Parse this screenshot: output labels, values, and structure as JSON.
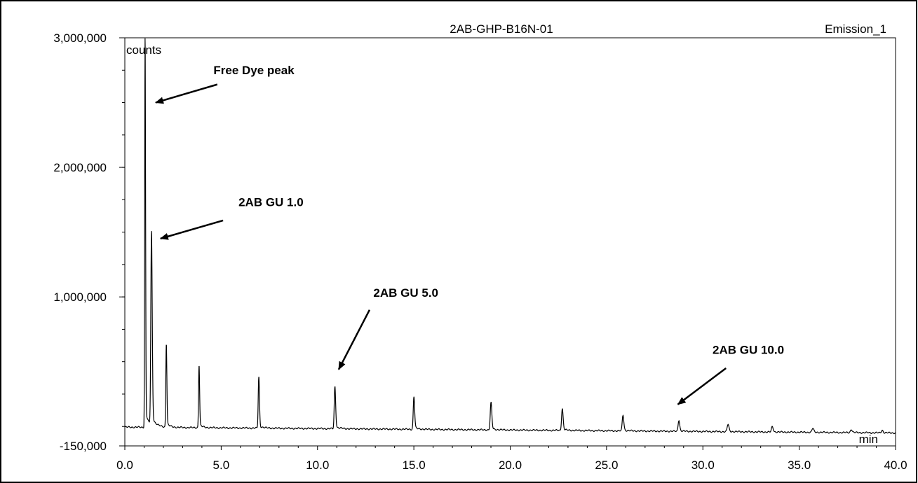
{
  "chart_data": {
    "type": "line",
    "title": "2AB-GHP-B16N-01",
    "channel": "Emission_1",
    "ylabel": "counts",
    "xlabel": "min",
    "xlim": [
      0.0,
      40.0
    ],
    "ylim": [
      -150000,
      3000000
    ],
    "x_ticks": [
      0,
      5,
      10,
      15,
      20,
      25,
      30,
      35,
      40
    ],
    "x_tick_labels": [
      "0.0",
      "5.0",
      "10.0",
      "15.0",
      "20.0",
      "25.0",
      "30.0",
      "35.0",
      "40.0"
    ],
    "y_ticks": [
      -150000,
      1000000,
      2000000,
      3000000
    ],
    "y_tick_labels": [
      "-150,000",
      "1,000,000",
      "2,000,000",
      "3,000,000"
    ],
    "baseline": {
      "start": -5000,
      "end": -50000
    },
    "peaks": [
      {
        "rt": 1.05,
        "height": 3000000,
        "width": 0.05
      },
      {
        "rt": 1.38,
        "height": 1470000,
        "width": 0.08
      },
      {
        "rt": 2.15,
        "height": 640000,
        "width": 0.06
      },
      {
        "rt": 3.85,
        "height": 480000,
        "width": 0.06
      },
      {
        "rt": 6.95,
        "height": 390000,
        "width": 0.07
      },
      {
        "rt": 10.9,
        "height": 320000,
        "width": 0.08
      },
      {
        "rt": 15.0,
        "height": 250000,
        "width": 0.08
      },
      {
        "rt": 19.0,
        "height": 205000,
        "width": 0.09
      },
      {
        "rt": 22.7,
        "height": 165000,
        "width": 0.09
      },
      {
        "rt": 25.85,
        "height": 120000,
        "width": 0.09
      },
      {
        "rt": 28.75,
        "height": 85000,
        "width": 0.09
      },
      {
        "rt": 31.3,
        "height": 55000,
        "width": 0.1
      },
      {
        "rt": 33.6,
        "height": 40000,
        "width": 0.1
      },
      {
        "rt": 35.7,
        "height": 30000,
        "width": 0.1
      },
      {
        "rt": 37.7,
        "height": 25000,
        "width": 0.1
      },
      {
        "rt": 39.3,
        "height": 20000,
        "width": 0.1
      }
    ],
    "annotations": [
      {
        "text": "Free Dye peak",
        "x": 4.6,
        "y": 2720000,
        "arrow_from": [
          4.8,
          2640000
        ],
        "arrow_to": [
          1.6,
          2500000
        ]
      },
      {
        "text": "2AB GU 1.0",
        "x": 5.9,
        "y": 1700000,
        "arrow_from": [
          5.1,
          1590000
        ],
        "arrow_to": [
          1.85,
          1450000
        ]
      },
      {
        "text": "2AB GU 5.0",
        "x": 12.9,
        "y": 1000000,
        "arrow_from": [
          12.7,
          900000
        ],
        "arrow_to": [
          11.1,
          440000
        ]
      },
      {
        "text": "2AB GU 10.0",
        "x": 30.5,
        "y": 560000,
        "arrow_from": [
          31.2,
          450000
        ],
        "arrow_to": [
          28.7,
          170000
        ]
      }
    ],
    "grid": false,
    "legend": "none"
  }
}
